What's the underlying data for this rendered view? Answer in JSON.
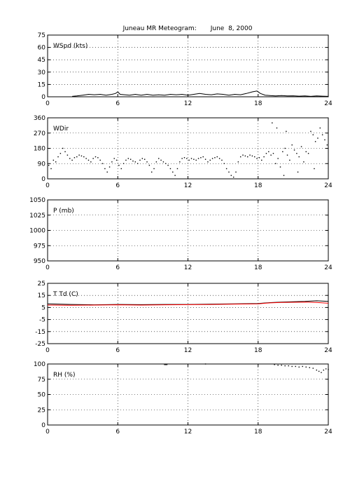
{
  "title": "Juneau MR Meteogram:       June  8, 2000",
  "chart_data": [
    {
      "type": "line",
      "panel_label": "WSpd (kts)",
      "xlim": [
        0,
        24
      ],
      "xticks": [
        0,
        6,
        12,
        18,
        24
      ],
      "ylim": [
        0,
        75
      ],
      "yticks": [
        0,
        15,
        30,
        45,
        60,
        75
      ],
      "grid": true,
      "series": [
        {
          "color": "#000000",
          "points": [
            [
              2.1,
              0.5
            ],
            [
              2.5,
              1
            ],
            [
              3.0,
              2
            ],
            [
              3.5,
              3
            ],
            [
              4.0,
              2.5
            ],
            [
              4.5,
              3
            ],
            [
              5.0,
              2
            ],
            [
              5.5,
              3
            ],
            [
              5.8,
              4
            ],
            [
              6.0,
              6
            ],
            [
              6.2,
              3
            ],
            [
              6.6,
              2.5
            ],
            [
              7.0,
              2
            ],
            [
              7.5,
              3
            ],
            [
              8.0,
              2
            ],
            [
              8.5,
              3
            ],
            [
              9.0,
              2
            ],
            [
              9.5,
              2.5
            ],
            [
              10.0,
              2
            ],
            [
              10.5,
              3
            ],
            [
              11.0,
              2.5
            ],
            [
              11.5,
              3
            ],
            [
              12.0,
              2
            ],
            [
              12.5,
              3
            ],
            [
              13.0,
              4
            ],
            [
              13.5,
              3
            ],
            [
              14.0,
              2.5
            ],
            [
              14.5,
              3.5
            ],
            [
              15.0,
              3
            ],
            [
              15.5,
              2
            ],
            [
              16.0,
              3
            ],
            [
              16.5,
              2.5
            ],
            [
              17.0,
              4
            ],
            [
              17.5,
              6
            ],
            [
              17.9,
              7
            ],
            [
              18.2,
              4
            ],
            [
              18.6,
              2
            ],
            [
              19.0,
              1.5
            ],
            [
              19.5,
              1
            ],
            [
              20.0,
              1.5
            ],
            [
              20.5,
              1
            ],
            [
              21.0,
              1.2
            ],
            [
              21.5,
              0.8
            ],
            [
              22.0,
              1
            ],
            [
              22.5,
              0.5
            ],
            [
              23.0,
              1
            ],
            [
              23.5,
              0.8
            ],
            [
              24.0,
              0.5
            ]
          ]
        }
      ]
    },
    {
      "type": "scatter",
      "panel_label": "WDir",
      "xlim": [
        0,
        24
      ],
      "xticks": [
        0,
        6,
        12,
        18,
        24
      ],
      "ylim": [
        0,
        360
      ],
      "yticks": [
        0,
        90,
        180,
        270,
        360
      ],
      "grid": true,
      "series": [
        {
          "color": "#000000",
          "points": [
            [
              0.1,
              80
            ],
            [
              0.3,
              60
            ],
            [
              0.5,
              110
            ],
            [
              0.7,
              100
            ],
            [
              0.9,
              130
            ],
            [
              1.1,
              150
            ],
            [
              1.3,
              180
            ],
            [
              1.5,
              160
            ],
            [
              1.7,
              140
            ],
            [
              1.9,
              120
            ],
            [
              2.1,
              110
            ],
            [
              2.3,
              125
            ],
            [
              2.5,
              130
            ],
            [
              2.7,
              140
            ],
            [
              2.9,
              135
            ],
            [
              3.1,
              130
            ],
            [
              3.3,
              120
            ],
            [
              3.5,
              110
            ],
            [
              3.7,
              100
            ],
            [
              3.9,
              120
            ],
            [
              4.1,
              130
            ],
            [
              4.3,
              125
            ],
            [
              4.5,
              110
            ],
            [
              4.7,
              90
            ],
            [
              4.9,
              60
            ],
            [
              5.1,
              40
            ],
            [
              5.3,
              70
            ],
            [
              5.5,
              100
            ],
            [
              5.7,
              120
            ],
            [
              5.9,
              110
            ],
            [
              6.1,
              80
            ],
            [
              6.3,
              60
            ],
            [
              6.5,
              90
            ],
            [
              6.7,
              110
            ],
            [
              6.9,
              120
            ],
            [
              7.1,
              115
            ],
            [
              7.3,
              105
            ],
            [
              7.5,
              100
            ],
            [
              7.7,
              90
            ],
            [
              7.9,
              110
            ],
            [
              8.1,
              120
            ],
            [
              8.3,
              115
            ],
            [
              8.5,
              100
            ],
            [
              8.7,
              80
            ],
            [
              8.9,
              40
            ],
            [
              9.1,
              60
            ],
            [
              9.3,
              100
            ],
            [
              9.5,
              120
            ],
            [
              9.7,
              110
            ],
            [
              9.9,
              100
            ],
            [
              10.1,
              90
            ],
            [
              10.3,
              80
            ],
            [
              10.5,
              60
            ],
            [
              10.7,
              40
            ],
            [
              10.9,
              20
            ],
            [
              11.1,
              60
            ],
            [
              11.3,
              100
            ],
            [
              11.5,
              120
            ],
            [
              11.7,
              125
            ],
            [
              11.9,
              120
            ],
            [
              12.1,
              110
            ],
            [
              12.3,
              120
            ],
            [
              12.5,
              115
            ],
            [
              12.7,
              110
            ],
            [
              12.9,
              120
            ],
            [
              13.1,
              125
            ],
            [
              13.3,
              130
            ],
            [
              13.5,
              115
            ],
            [
              13.7,
              100
            ],
            [
              13.9,
              110
            ],
            [
              14.1,
              120
            ],
            [
              14.3,
              125
            ],
            [
              14.5,
              130
            ],
            [
              14.7,
              120
            ],
            [
              14.9,
              110
            ],
            [
              15.1,
              90
            ],
            [
              15.3,
              60
            ],
            [
              15.5,
              40
            ],
            [
              15.7,
              20
            ],
            [
              15.9,
              10
            ],
            [
              16.1,
              40
            ],
            [
              16.3,
              100
            ],
            [
              16.5,
              130
            ],
            [
              16.7,
              140
            ],
            [
              16.9,
              135
            ],
            [
              17.1,
              130
            ],
            [
              17.3,
              140
            ],
            [
              17.5,
              135
            ],
            [
              17.7,
              130
            ],
            [
              17.9,
              120
            ],
            [
              18.1,
              125
            ],
            [
              18.3,
              110
            ],
            [
              18.5,
              130
            ],
            [
              18.7,
              150
            ],
            [
              18.9,
              160
            ],
            [
              19.1,
              140
            ],
            [
              19.3,
              150
            ],
            [
              19.5,
              90
            ],
            [
              19.7,
              120
            ],
            [
              19.9,
              70
            ],
            [
              20.1,
              160
            ],
            [
              20.3,
              180
            ],
            [
              20.5,
              140
            ],
            [
              20.7,
              110
            ],
            [
              20.9,
              200
            ],
            [
              21.1,
              170
            ],
            [
              21.3,
              150
            ],
            [
              21.5,
              130
            ],
            [
              21.7,
              190
            ],
            [
              21.9,
              100
            ],
            [
              22.1,
              160
            ],
            [
              22.3,
              150
            ],
            [
              22.5,
              280
            ],
            [
              22.7,
              260
            ],
            [
              22.9,
              220
            ],
            [
              23.1,
              240
            ],
            [
              23.3,
              300
            ],
            [
              23.5,
              260
            ],
            [
              23.7,
              230
            ],
            [
              23.9,
              200
            ],
            [
              19.2,
              330
            ],
            [
              19.6,
              300
            ],
            [
              20.4,
              280
            ],
            [
              21.4,
              40
            ],
            [
              20.2,
              20
            ],
            [
              22.8,
              60
            ]
          ]
        }
      ]
    },
    {
      "type": "line",
      "panel_label": "P (mb)",
      "xlim": [
        0,
        24
      ],
      "xticks": [
        0,
        6,
        12,
        18,
        24
      ],
      "ylim": [
        950,
        1050
      ],
      "yticks": [
        950,
        975,
        1000,
        1025,
        1050
      ],
      "grid": true,
      "series": []
    },
    {
      "type": "line",
      "panel_label": "T Td (C)",
      "xlim": [
        0,
        24
      ],
      "xticks": [
        0,
        6,
        12,
        18,
        24
      ],
      "ylim": [
        -25,
        25
      ],
      "yticks": [
        -25,
        -15,
        -5,
        5,
        15,
        25
      ],
      "grid": true,
      "series": [
        {
          "color": "#000000",
          "points": [
            [
              0,
              8
            ],
            [
              2,
              7.5
            ],
            [
              4,
              7.2
            ],
            [
              6,
              7.5
            ],
            [
              8,
              7.3
            ],
            [
              10,
              7.5
            ],
            [
              12,
              7.5
            ],
            [
              14,
              7.8
            ],
            [
              16,
              8
            ],
            [
              18,
              8.3
            ],
            [
              19,
              9
            ],
            [
              20,
              9.5
            ],
            [
              22,
              10
            ],
            [
              23,
              10.5
            ],
            [
              24,
              10
            ]
          ]
        },
        {
          "color": "#ff0000",
          "points": [
            [
              0,
              7
            ],
            [
              2,
              6.8
            ],
            [
              4,
              7
            ],
            [
              6,
              7.2
            ],
            [
              8,
              7
            ],
            [
              10,
              7.2
            ],
            [
              12,
              7.3
            ],
            [
              14,
              7.5
            ],
            [
              16,
              7.8
            ],
            [
              18,
              8
            ],
            [
              19,
              8.8
            ],
            [
              20,
              9.2
            ],
            [
              22,
              9.5
            ],
            [
              23,
              9.2
            ],
            [
              24,
              8.5
            ]
          ]
        }
      ]
    },
    {
      "type": "scatter",
      "panel_label": "RH (%)",
      "xlim": [
        0,
        24
      ],
      "xticks": [
        0,
        6,
        12,
        18,
        24
      ],
      "ylim": [
        0,
        100
      ],
      "yticks": [
        0,
        25,
        50,
        75,
        100
      ],
      "grid": true,
      "series": [
        {
          "color": "#000000",
          "points": [
            [
              10.0,
              99
            ],
            [
              10.1,
              99
            ],
            [
              10.2,
              99
            ],
            [
              13.5,
              100
            ],
            [
              19.4,
              99
            ],
            [
              19.7,
              98
            ],
            [
              20.0,
              98
            ],
            [
              20.3,
              97
            ],
            [
              20.6,
              97
            ],
            [
              20.9,
              96
            ],
            [
              21.2,
              96
            ],
            [
              21.5,
              95
            ],
            [
              21.8,
              96
            ],
            [
              22.1,
              95
            ],
            [
              22.4,
              94
            ],
            [
              22.7,
              93
            ],
            [
              23.0,
              90
            ],
            [
              23.2,
              88
            ],
            [
              23.4,
              86
            ],
            [
              23.6,
              90
            ],
            [
              23.8,
              92
            ],
            [
              24.0,
              91
            ]
          ]
        }
      ]
    }
  ]
}
